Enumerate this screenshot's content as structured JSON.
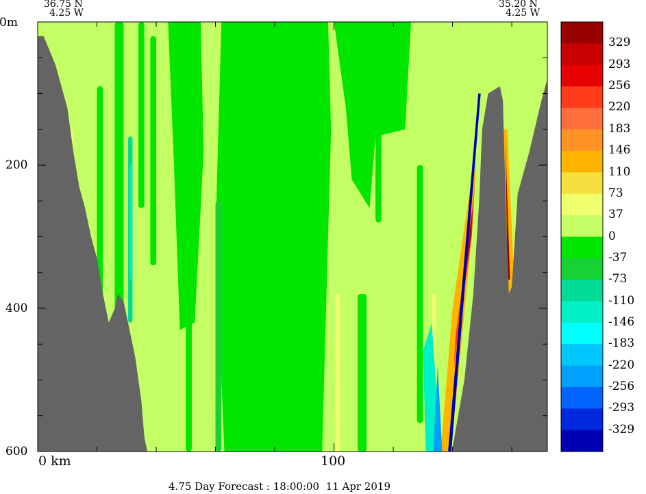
{
  "header": {
    "left_lat": "36.75 N",
    "left_lon": "4.25 W",
    "right_lat": "35.20 N",
    "right_lon": "4.25 W"
  },
  "footer": {
    "caption": "4.75 Day Forecast : 18:00:00  11 Apr 2019"
  },
  "chart_data": {
    "type": "heatmap",
    "title": "",
    "xlabel": "",
    "ylabel": "",
    "x_tick_labels": [
      "0 km",
      "100"
    ],
    "y_tick_labels": [
      "0m",
      "200",
      "400",
      "600"
    ],
    "xlim": [
      0,
      172
    ],
    "ylim": [
      600,
      0
    ],
    "y_ticks": [
      0,
      200,
      400,
      600
    ],
    "x_ticks": [
      0,
      100
    ],
    "grid": false,
    "colorbar": {
      "labels": [
        "329",
        "293",
        "256",
        "220",
        "183",
        "146",
        "110",
        "73",
        "37",
        "0",
        "-37",
        "-73",
        "-110",
        "-146",
        "-183",
        "-220",
        "-256",
        "-293",
        "-329"
      ],
      "colors": [
        "#9b0000",
        "#c70000",
        "#e60000",
        "#ff3b1a",
        "#ff6e3c",
        "#ff9224",
        "#ffb400",
        "#f5e040",
        "#f0ff6e",
        "#c3ff64",
        "#00e600",
        "#17d232",
        "#00dc96",
        "#00f0c8",
        "#00ffff",
        "#00c8ff",
        "#00a0ff",
        "#0064ff",
        "#0028dc",
        "#0000b4"
      ]
    },
    "seabed_color": "#646464",
    "background_color": "#c3ff64"
  }
}
